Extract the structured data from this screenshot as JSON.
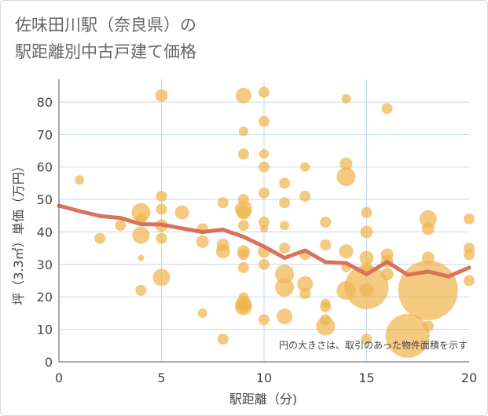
{
  "chart_data": {
    "type": "scatter",
    "title_line1": "佐味田川駅（奈良県）の",
    "title_line2": "駅距離別中古戸建て価格",
    "xlabel": "駅距離（分)",
    "ylabel": "坪（3.3㎡）単価（万円）",
    "xlim": [
      0,
      20
    ],
    "ylim": [
      0,
      87
    ],
    "xticks": [
      0,
      5,
      10,
      15,
      20
    ],
    "yticks": [
      0,
      10,
      20,
      30,
      40,
      50,
      60,
      70,
      80
    ],
    "annotation": "円の大きさは、取引のあった物件面積を示す",
    "colors": {
      "bubble": "#F0B44F",
      "line": "#D8735A",
      "grid": "#C5D8EA"
    },
    "bubbles": [
      {
        "x": 1,
        "y": 56,
        "s": 6
      },
      {
        "x": 2,
        "y": 38,
        "s": 7
      },
      {
        "x": 3,
        "y": 42,
        "s": 7
      },
      {
        "x": 4,
        "y": 46,
        "s": 12
      },
      {
        "x": 4,
        "y": 44,
        "s": 7
      },
      {
        "x": 4,
        "y": 39,
        "s": 11
      },
      {
        "x": 4,
        "y": 32,
        "s": 4
      },
      {
        "x": 4,
        "y": 22,
        "s": 7
      },
      {
        "x": 5,
        "y": 82,
        "s": 8
      },
      {
        "x": 5,
        "y": 51,
        "s": 7
      },
      {
        "x": 5,
        "y": 47,
        "s": 7
      },
      {
        "x": 5,
        "y": 42,
        "s": 8
      },
      {
        "x": 5,
        "y": 38,
        "s": 7
      },
      {
        "x": 5,
        "y": 26,
        "s": 11
      },
      {
        "x": 6,
        "y": 46,
        "s": 9
      },
      {
        "x": 7,
        "y": 41,
        "s": 7
      },
      {
        "x": 7,
        "y": 37,
        "s": 8
      },
      {
        "x": 7,
        "y": 15,
        "s": 6
      },
      {
        "x": 8,
        "y": 49,
        "s": 7
      },
      {
        "x": 8,
        "y": 36,
        "s": 8
      },
      {
        "x": 8,
        "y": 34,
        "s": 9
      },
      {
        "x": 8,
        "y": 7,
        "s": 7
      },
      {
        "x": 9,
        "y": 82,
        "s": 10
      },
      {
        "x": 9,
        "y": 71,
        "s": 6
      },
      {
        "x": 9,
        "y": 64,
        "s": 7
      },
      {
        "x": 9,
        "y": 50,
        "s": 7
      },
      {
        "x": 9,
        "y": 47,
        "s": 11
      },
      {
        "x": 9,
        "y": 46,
        "s": 9
      },
      {
        "x": 9,
        "y": 42,
        "s": 7
      },
      {
        "x": 9,
        "y": 34,
        "s": 8
      },
      {
        "x": 9,
        "y": 33,
        "s": 7
      },
      {
        "x": 9,
        "y": 29,
        "s": 7
      },
      {
        "x": 9,
        "y": 20,
        "s": 6
      },
      {
        "x": 9,
        "y": 18,
        "s": 10
      },
      {
        "x": 9,
        "y": 17,
        "s": 11
      },
      {
        "x": 9,
        "y": 17,
        "s": 8
      },
      {
        "x": 10,
        "y": 83,
        "s": 7
      },
      {
        "x": 10,
        "y": 74,
        "s": 7
      },
      {
        "x": 10,
        "y": 64,
        "s": 6
      },
      {
        "x": 10,
        "y": 60,
        "s": 7
      },
      {
        "x": 10,
        "y": 52,
        "s": 7
      },
      {
        "x": 10,
        "y": 43,
        "s": 7
      },
      {
        "x": 10,
        "y": 41,
        "s": 5
      },
      {
        "x": 10,
        "y": 34,
        "s": 8
      },
      {
        "x": 10,
        "y": 30,
        "s": 7
      },
      {
        "x": 10,
        "y": 13,
        "s": 7
      },
      {
        "x": 11,
        "y": 55,
        "s": 7
      },
      {
        "x": 11,
        "y": 49,
        "s": 7
      },
      {
        "x": 11,
        "y": 42,
        "s": 6
      },
      {
        "x": 11,
        "y": 35,
        "s": 7
      },
      {
        "x": 11,
        "y": 27,
        "s": 12
      },
      {
        "x": 11,
        "y": 23,
        "s": 12
      },
      {
        "x": 11,
        "y": 14,
        "s": 10
      },
      {
        "x": 12,
        "y": 60,
        "s": 6
      },
      {
        "x": 12,
        "y": 51,
        "s": 7
      },
      {
        "x": 12,
        "y": 33,
        "s": 7
      },
      {
        "x": 12,
        "y": 24,
        "s": 10
      },
      {
        "x": 12,
        "y": 21,
        "s": 7
      },
      {
        "x": 13,
        "y": 43,
        "s": 7
      },
      {
        "x": 13,
        "y": 36,
        "s": 7
      },
      {
        "x": 13,
        "y": 18,
        "s": 6
      },
      {
        "x": 13,
        "y": 17,
        "s": 7
      },
      {
        "x": 13,
        "y": 13,
        "s": 7
      },
      {
        "x": 13,
        "y": 11,
        "s": 12
      },
      {
        "x": 14,
        "y": 81,
        "s": 6
      },
      {
        "x": 14,
        "y": 61,
        "s": 8
      },
      {
        "x": 14,
        "y": 57,
        "s": 12
      },
      {
        "x": 14,
        "y": 34,
        "s": 9
      },
      {
        "x": 14,
        "y": 29,
        "s": 6
      },
      {
        "x": 14,
        "y": 22,
        "s": 12
      },
      {
        "x": 15,
        "y": 46,
        "s": 7
      },
      {
        "x": 15,
        "y": 40,
        "s": 8
      },
      {
        "x": 15,
        "y": 32,
        "s": 9
      },
      {
        "x": 15,
        "y": 29,
        "s": 7
      },
      {
        "x": 15,
        "y": 23,
        "s": 28
      },
      {
        "x": 15,
        "y": 22,
        "s": 9
      },
      {
        "x": 15,
        "y": 7,
        "s": 7
      },
      {
        "x": 16,
        "y": 78,
        "s": 7
      },
      {
        "x": 16,
        "y": 33,
        "s": 8
      },
      {
        "x": 16,
        "y": 31,
        "s": 8
      },
      {
        "x": 16,
        "y": 27,
        "s": 8
      },
      {
        "x": 17,
        "y": 8,
        "s": 28
      },
      {
        "x": 18,
        "y": 44,
        "s": 11
      },
      {
        "x": 18,
        "y": 41,
        "s": 8
      },
      {
        "x": 18,
        "y": 32,
        "s": 8
      },
      {
        "x": 18,
        "y": 22,
        "s": 38
      },
      {
        "x": 18,
        "y": 11,
        "s": 7
      },
      {
        "x": 20,
        "y": 44,
        "s": 7
      },
      {
        "x": 20,
        "y": 35,
        "s": 7
      },
      {
        "x": 20,
        "y": 33,
        "s": 7
      },
      {
        "x": 20,
        "y": 25,
        "s": 7
      }
    ],
    "trend": {
      "x": [
        0,
        1,
        2,
        3,
        4,
        5,
        6,
        7,
        8,
        9,
        10,
        11,
        12,
        13,
        14,
        15,
        16,
        17,
        18,
        19,
        20
      ],
      "y": [
        48.1,
        46.4,
        44.9,
        44.3,
        42.4,
        42.3,
        41.1,
        40.0,
        40.7,
        38.5,
        35.5,
        32.0,
        34.3,
        30.7,
        30.4,
        27.0,
        30.8,
        26.8,
        27.8,
        26.3,
        29.0
      ]
    }
  }
}
